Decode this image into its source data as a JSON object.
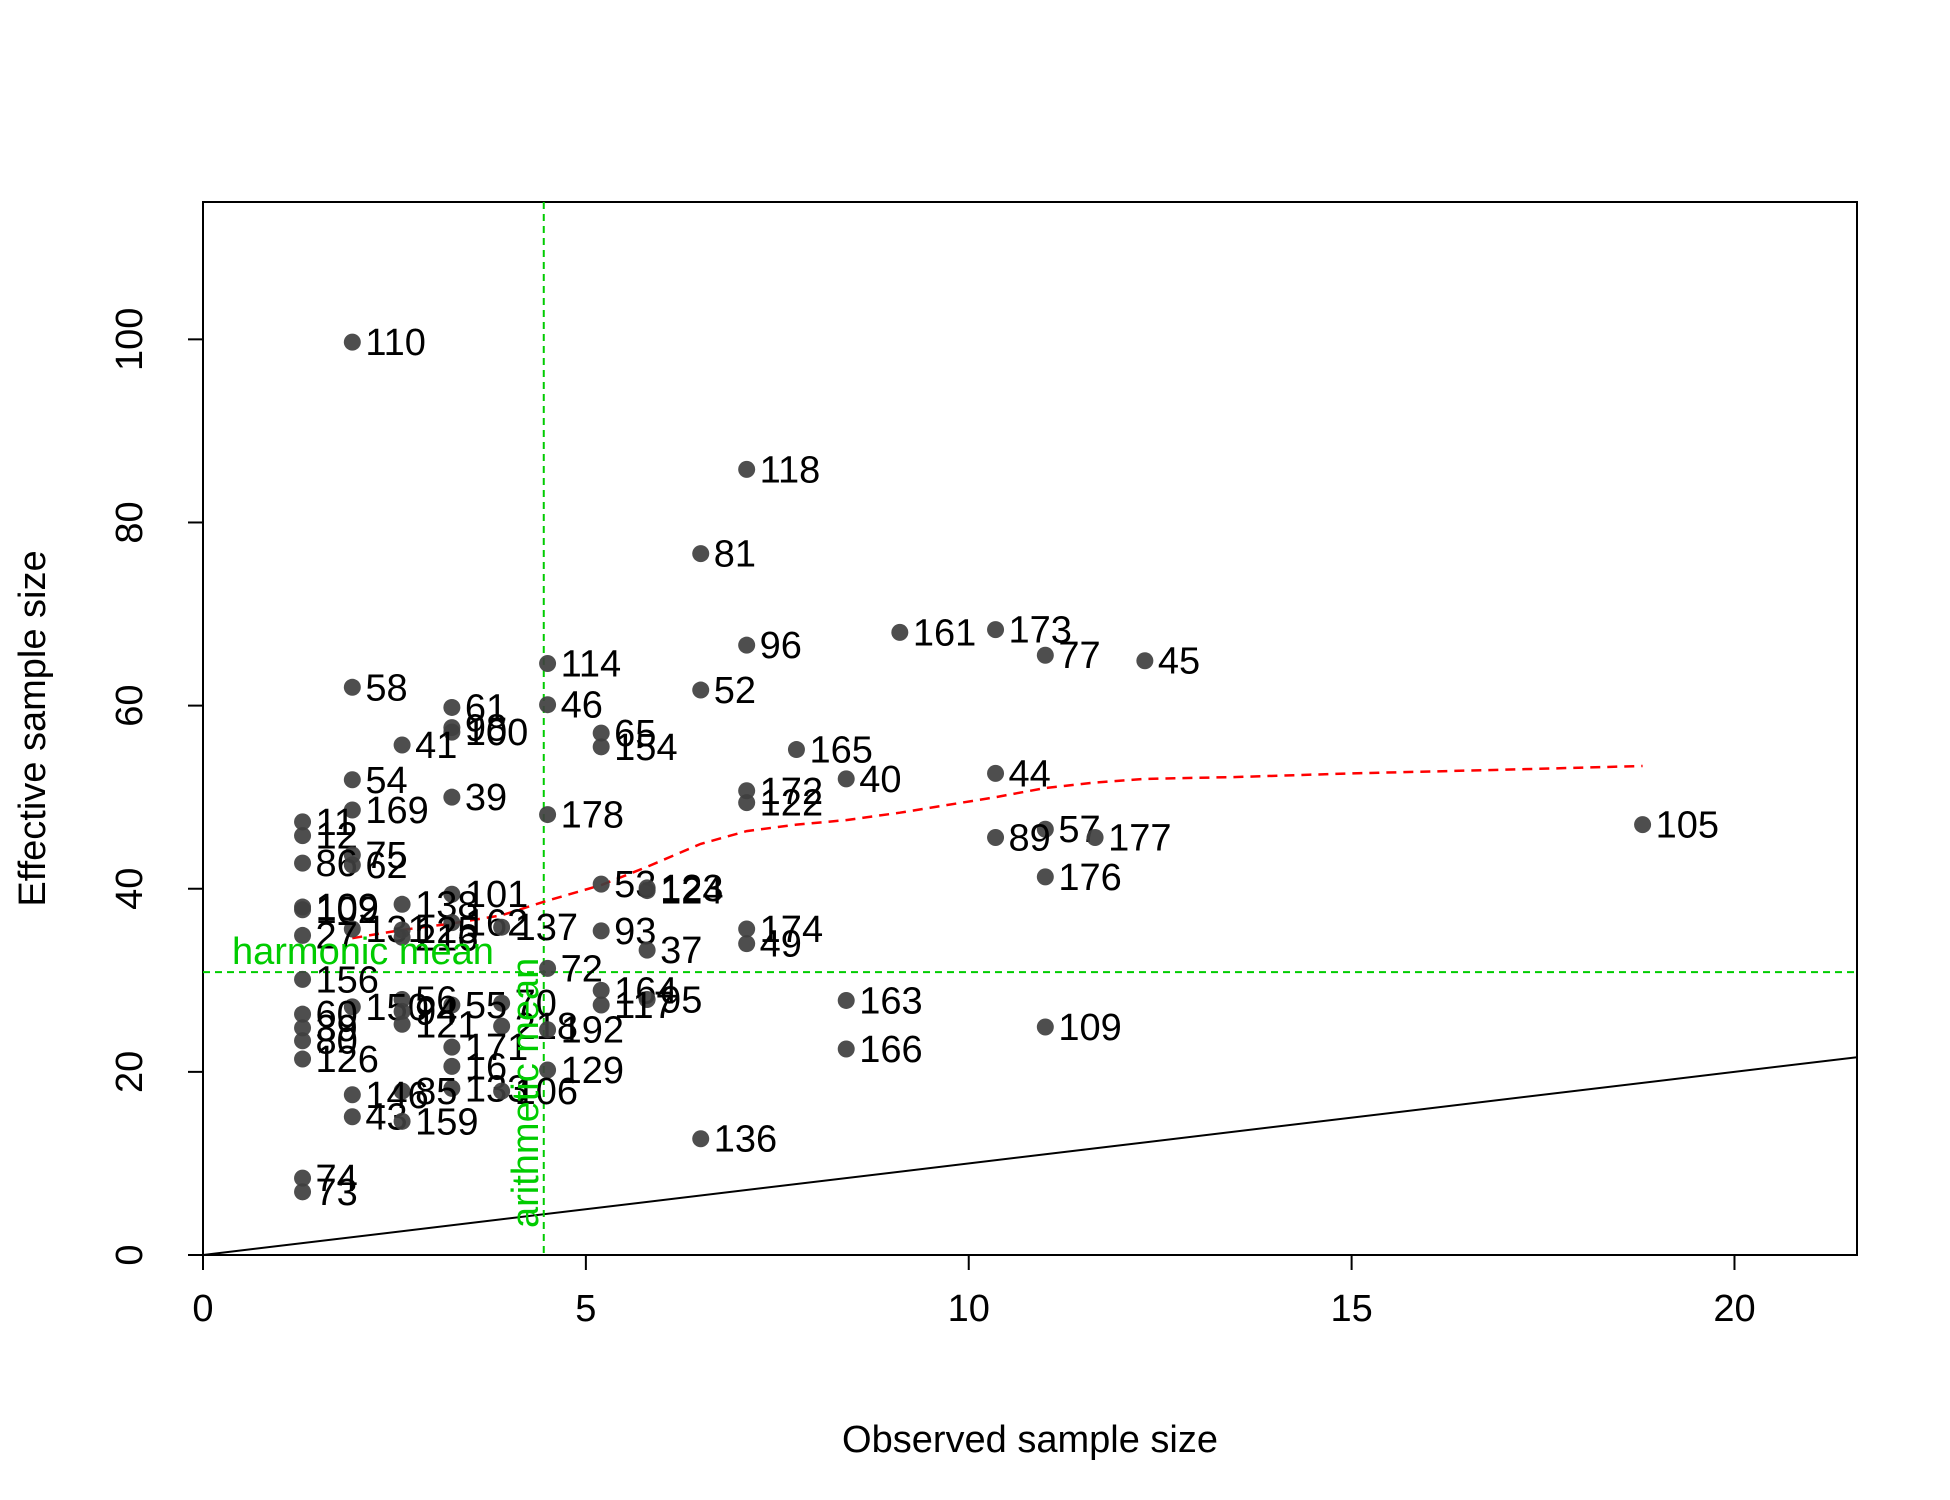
{
  "chart_data": {
    "type": "scatter",
    "title": "",
    "xlabel": "Observed sample size",
    "ylabel": "Effective sample size",
    "xlim": [
      0,
      21.6
    ],
    "ylim": [
      0,
      115
    ],
    "xticks": [
      0,
      5,
      10,
      15,
      20
    ],
    "yticks": [
      0,
      20,
      40,
      60,
      80,
      100
    ],
    "grid": false,
    "point_color": "#3f3f3f",
    "points": [
      {
        "label": "110",
        "x": 1.95,
        "y": 99.7
      },
      {
        "label": "118",
        "x": 7.1,
        "y": 85.8
      },
      {
        "label": "81",
        "x": 6.5,
        "y": 76.6
      },
      {
        "label": "96",
        "x": 7.1,
        "y": 66.6
      },
      {
        "label": "161",
        "x": 9.1,
        "y": 68.0
      },
      {
        "label": "173",
        "x": 10.35,
        "y": 68.3
      },
      {
        "label": "77",
        "x": 11.0,
        "y": 65.5
      },
      {
        "label": "45",
        "x": 12.3,
        "y": 64.9
      },
      {
        "label": "114",
        "x": 4.5,
        "y": 64.6
      },
      {
        "label": "58",
        "x": 1.95,
        "y": 62.0
      },
      {
        "label": "52",
        "x": 6.5,
        "y": 61.7
      },
      {
        "label": "46",
        "x": 4.5,
        "y": 60.1
      },
      {
        "label": "61",
        "x": 3.25,
        "y": 59.8
      },
      {
        "label": "98",
        "x": 3.25,
        "y": 57.6
      },
      {
        "label": "100",
        "x": 3.25,
        "y": 57.1
      },
      {
        "label": "65",
        "x": 5.2,
        "y": 57.0
      },
      {
        "label": "41",
        "x": 2.6,
        "y": 55.7
      },
      {
        "label": "154",
        "x": 5.2,
        "y": 55.5
      },
      {
        "label": "165",
        "x": 7.75,
        "y": 55.2
      },
      {
        "label": "44",
        "x": 10.35,
        "y": 52.6
      },
      {
        "label": "40",
        "x": 8.4,
        "y": 52.0
      },
      {
        "label": "54",
        "x": 1.95,
        "y": 51.9
      },
      {
        "label": "172",
        "x": 7.1,
        "y": 50.7
      },
      {
        "label": "39",
        "x": 3.25,
        "y": 50.0
      },
      {
        "label": "122",
        "x": 7.1,
        "y": 49.4
      },
      {
        "label": "169",
        "x": 1.95,
        "y": 48.6
      },
      {
        "label": "178",
        "x": 4.5,
        "y": 48.1
      },
      {
        "label": "11",
        "x": 1.3,
        "y": 47.3
      },
      {
        "label": "105",
        "x": 18.8,
        "y": 47.0
      },
      {
        "label": "57",
        "x": 11.0,
        "y": 46.5
      },
      {
        "label": "12",
        "x": 1.3,
        "y": 45.8
      },
      {
        "label": "89",
        "x": 10.35,
        "y": 45.6
      },
      {
        "label": "177",
        "x": 11.65,
        "y": 45.6
      },
      {
        "label": "75",
        "x": 1.95,
        "y": 43.7
      },
      {
        "label": "86",
        "x": 1.3,
        "y": 42.8
      },
      {
        "label": "62",
        "x": 1.95,
        "y": 42.6
      },
      {
        "label": "176",
        "x": 11.0,
        "y": 41.3
      },
      {
        "label": "53",
        "x": 5.2,
        "y": 40.5
      },
      {
        "label": "123",
        "x": 5.8,
        "y": 40.1
      },
      {
        "label": "124",
        "x": 5.8,
        "y": 39.8
      },
      {
        "label": "101",
        "x": 3.25,
        "y": 39.4
      },
      {
        "label": "109",
        "x": 1.3,
        "y": 38.0
      },
      {
        "label": "102",
        "x": 1.3,
        "y": 37.7
      },
      {
        "label": "138",
        "x": 2.6,
        "y": 38.3
      },
      {
        "label": "162",
        "x": 3.25,
        "y": 36.3
      },
      {
        "label": "137",
        "x": 3.9,
        "y": 35.8
      },
      {
        "label": "174",
        "x": 7.1,
        "y": 35.6
      },
      {
        "label": "93",
        "x": 5.2,
        "y": 35.4
      },
      {
        "label": "131",
        "x": 1.95,
        "y": 35.6
      },
      {
        "label": "125",
        "x": 2.6,
        "y": 35.5
      },
      {
        "label": "27",
        "x": 1.3,
        "y": 34.9
      },
      {
        "label": "216",
        "x": 2.6,
        "y": 34.7
      },
      {
        "label": "49",
        "x": 7.1,
        "y": 34.0
      },
      {
        "label": "37",
        "x": 5.8,
        "y": 33.3
      },
      {
        "label": "72",
        "x": 4.5,
        "y": 31.3
      },
      {
        "label": "156",
        "x": 1.3,
        "y": 30.1
      },
      {
        "label": "164",
        "x": 5.2,
        "y": 28.9
      },
      {
        "label": "163",
        "x": 8.4,
        "y": 27.8
      },
      {
        "label": "95",
        "x": 5.8,
        "y": 27.9
      },
      {
        "label": "117",
        "x": 5.2,
        "y": 27.3
      },
      {
        "label": "70",
        "x": 3.9,
        "y": 27.5
      },
      {
        "label": "55",
        "x": 3.25,
        "y": 27.3
      },
      {
        "label": "56",
        "x": 2.6,
        "y": 27.9
      },
      {
        "label": "150",
        "x": 1.95,
        "y": 27.1
      },
      {
        "label": "94",
        "x": 2.6,
        "y": 26.6
      },
      {
        "label": "60",
        "x": 1.3,
        "y": 26.3
      },
      {
        "label": "218",
        "x": 3.9,
        "y": 25.0
      },
      {
        "label": "192",
        "x": 4.5,
        "y": 24.6
      },
      {
        "label": "121",
        "x": 2.6,
        "y": 25.2
      },
      {
        "label": "109",
        "x": 11.0,
        "y": 24.9
      },
      {
        "label": "39",
        "x": 1.3,
        "y": 24.8
      },
      {
        "label": "80",
        "x": 1.3,
        "y": 23.4
      },
      {
        "label": "166",
        "x": 8.4,
        "y": 22.5
      },
      {
        "label": "171",
        "x": 3.25,
        "y": 22.7
      },
      {
        "label": "126",
        "x": 1.3,
        "y": 21.4
      },
      {
        "label": "16",
        "x": 3.25,
        "y": 20.6
      },
      {
        "label": "129",
        "x": 4.5,
        "y": 20.2
      },
      {
        "label": "133",
        "x": 3.25,
        "y": 18.2
      },
      {
        "label": "85",
        "x": 2.6,
        "y": 17.9
      },
      {
        "label": "106",
        "x": 3.9,
        "y": 17.9
      },
      {
        "label": "146",
        "x": 1.95,
        "y": 17.5
      },
      {
        "label": "43",
        "x": 1.95,
        "y": 15.1
      },
      {
        "label": "159",
        "x": 2.6,
        "y": 14.6
      },
      {
        "label": "136",
        "x": 6.5,
        "y": 12.7
      },
      {
        "label": "74",
        "x": 1.3,
        "y": 8.4
      },
      {
        "label": "73",
        "x": 1.3,
        "y": 6.9
      }
    ],
    "reference_lines": {
      "identity": {
        "color": "#000000",
        "slope": 1
      },
      "harmonic_mean": {
        "label": "harmonic mean",
        "y": 30.9,
        "color": "#00cc00"
      },
      "arithmetic_mean": {
        "label": "arithmetic mean",
        "x": 4.45,
        "color": "#00cc00"
      },
      "smoother": {
        "color": "#ff0000",
        "x": [
          1.95,
          2.6,
          3.25,
          3.9,
          4.5,
          5.2,
          5.8,
          6.5,
          7.1,
          7.75,
          8.4,
          9.1,
          10.35,
          11.0,
          11.65,
          12.3,
          13.5,
          15.0,
          17.0,
          18.8
        ],
        "y": [
          34.6,
          35.5,
          36.2,
          37.1,
          38.7,
          40.4,
          42.4,
          44.9,
          46.3,
          47.0,
          47.5,
          48.3,
          50.0,
          51.0,
          51.6,
          52.0,
          52.2,
          52.6,
          53.0,
          53.4
        ]
      }
    }
  }
}
